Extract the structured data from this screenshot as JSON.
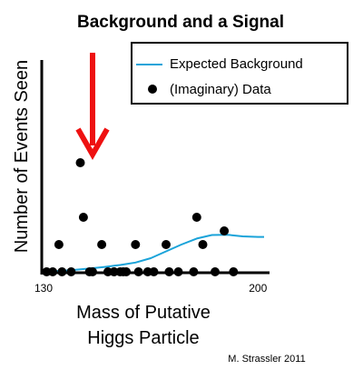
{
  "chart_data": {
    "type": "scatter",
    "title": "Background and a Signal",
    "ylabel": "Number of Events Seen",
    "xlabel_lines": [
      "Mass of Putative",
      "Higgs Particle"
    ],
    "xlim": [
      130,
      202
    ],
    "ylim": [
      0,
      6
    ],
    "xticks": [
      130,
      200
    ],
    "grid": false,
    "legend_position": "top-right",
    "colors": {
      "background_line": "#1aa3d9",
      "data_points": "#000000",
      "arrow": "#ee1111",
      "axes": "#000000"
    },
    "series": [
      {
        "name": "Expected Background",
        "kind": "line",
        "x": [
          131,
          135,
          140,
          145,
          150,
          155,
          160,
          165,
          170,
          175,
          180,
          185,
          190,
          195,
          200,
          202
        ],
        "y": [
          0.0,
          0.03,
          0.07,
          0.12,
          0.18,
          0.25,
          0.34,
          0.5,
          0.75,
          1.0,
          1.22,
          1.35,
          1.36,
          1.3,
          1.28,
          1.28
        ]
      },
      {
        "name": "(Imaginary) Data",
        "kind": "scatter",
        "x": [
          131,
          133,
          135,
          136,
          139,
          142,
          143,
          145,
          146,
          149,
          151,
          153,
          155,
          156,
          157,
          160,
          161,
          164,
          166,
          170,
          171,
          174,
          179,
          180,
          182,
          186,
          189,
          192
        ],
        "y": [
          0,
          0,
          1,
          0,
          0,
          4,
          2,
          0,
          0,
          1,
          0,
          0,
          0,
          0,
          0,
          1,
          0,
          0,
          0,
          1,
          0,
          0,
          0,
          2,
          1,
          0,
          1.5,
          0
        ]
      }
    ]
  },
  "credit": "M. Strassler 2011"
}
